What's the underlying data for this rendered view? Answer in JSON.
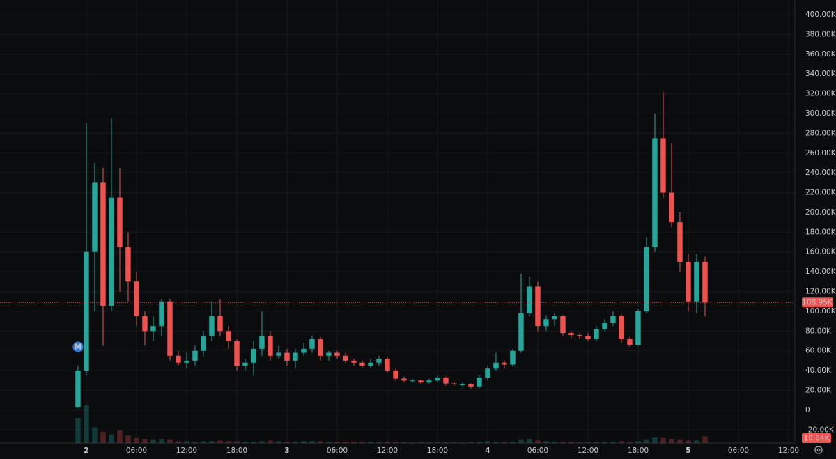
{
  "chart_data": {
    "type": "candlestick",
    "up_color": "#26a69a",
    "down_color": "#ef5350",
    "grid": true,
    "x": [
      -1,
      0,
      1,
      2,
      3,
      4,
      5,
      6,
      7,
      8,
      9,
      10,
      11,
      12,
      13,
      14,
      15,
      16,
      17,
      18,
      19,
      20,
      21,
      22,
      23,
      24,
      25,
      26,
      27,
      28,
      29,
      30,
      31,
      32,
      33,
      34,
      35,
      36,
      37,
      38,
      39,
      40,
      41,
      42,
      43,
      44,
      45,
      46,
      47,
      48,
      49,
      50,
      51,
      52,
      53,
      54,
      55,
      56,
      57,
      58,
      59,
      60,
      61,
      62,
      63,
      64,
      65,
      66,
      67,
      68,
      69,
      70,
      71,
      72,
      73,
      74
    ],
    "open": [
      3,
      40,
      160,
      230,
      105,
      215,
      165,
      130,
      95,
      80,
      85,
      110,
      55,
      48,
      50,
      60,
      75,
      95,
      80,
      70,
      45,
      48,
      62,
      75,
      55,
      58,
      50,
      58,
      62,
      72,
      55,
      58,
      55,
      50,
      48,
      45,
      48,
      52,
      40,
      32,
      30,
      30,
      28,
      30,
      33,
      27,
      26,
      26,
      24,
      33,
      42,
      48,
      46,
      60,
      98,
      125,
      85,
      92,
      95,
      78,
      76,
      75,
      72,
      82,
      88,
      95,
      72,
      66,
      100,
      165,
      275,
      220,
      190,
      150,
      110,
      150
    ],
    "high": [
      45,
      290,
      250,
      245,
      295,
      245,
      180,
      140,
      100,
      95,
      112,
      112,
      60,
      58,
      65,
      80,
      110,
      112,
      85,
      72,
      52,
      70,
      100,
      80,
      65,
      62,
      62,
      68,
      75,
      74,
      60,
      60,
      58,
      52,
      50,
      52,
      55,
      54,
      42,
      34,
      32,
      31,
      32,
      35,
      34,
      28,
      28,
      27,
      35,
      45,
      58,
      50,
      62,
      138,
      135,
      130,
      96,
      98,
      96,
      80,
      78,
      78,
      85,
      92,
      100,
      97,
      74,
      102,
      175,
      300,
      322,
      270,
      200,
      158,
      158,
      155
    ],
    "low": [
      2,
      35,
      100,
      65,
      100,
      120,
      110,
      85,
      65,
      70,
      75,
      50,
      45,
      42,
      45,
      55,
      70,
      75,
      62,
      40,
      40,
      35,
      55,
      50,
      52,
      45,
      42,
      55,
      58,
      50,
      50,
      52,
      48,
      45,
      43,
      42,
      45,
      38,
      30,
      28,
      28,
      26,
      27,
      28,
      25,
      25,
      24,
      22,
      22,
      30,
      40,
      42,
      44,
      58,
      95,
      80,
      80,
      85,
      75,
      73,
      72,
      70,
      70,
      80,
      85,
      68,
      64,
      65,
      98,
      160,
      215,
      185,
      140,
      100,
      98,
      95
    ],
    "close": [
      40,
      160,
      230,
      105,
      215,
      165,
      130,
      95,
      80,
      85,
      110,
      55,
      48,
      50,
      60,
      75,
      95,
      80,
      70,
      45,
      48,
      62,
      75,
      55,
      58,
      50,
      58,
      62,
      72,
      55,
      58,
      55,
      50,
      48,
      45,
      48,
      52,
      40,
      32,
      30,
      30,
      28,
      30,
      33,
      27,
      26,
      26,
      24,
      33,
      42,
      48,
      46,
      60,
      98,
      125,
      85,
      92,
      95,
      78,
      76,
      75,
      72,
      82,
      88,
      95,
      72,
      66,
      100,
      165,
      275,
      220,
      190,
      150,
      110,
      150,
      109
    ],
    "volume": [
      40,
      60,
      25,
      18,
      14,
      20,
      12,
      8,
      6,
      5,
      6,
      5,
      3,
      3,
      2,
      3,
      3,
      4,
      3,
      3,
      2,
      2,
      3,
      4,
      3,
      2,
      2,
      3,
      3,
      3,
      2,
      2,
      2,
      2,
      2,
      2,
      2,
      2,
      2,
      1,
      1,
      1,
      1,
      1,
      1,
      1,
      1,
      1,
      2,
      3,
      2,
      2,
      2,
      5,
      6,
      4,
      3,
      2,
      2,
      2,
      1,
      1,
      2,
      2,
      2,
      3,
      2,
      3,
      5,
      9,
      8,
      6,
      5,
      4,
      4,
      10.64
    ],
    "volume_label": {
      "value": 10.64,
      "label": "10.64K"
    },
    "last_price": {
      "value": 108.95,
      "label": "108.95K"
    },
    "marker": {
      "x": -1,
      "y": 64,
      "label": "M"
    },
    "xlim": [
      -10.33,
      84.67
    ],
    "xticks": [
      {
        "value": 0,
        "label": "2"
      },
      {
        "value": 6,
        "label": "06:00"
      },
      {
        "value": 12,
        "label": "12:00"
      },
      {
        "value": 18,
        "label": "18:00"
      },
      {
        "value": 24,
        "label": "3"
      },
      {
        "value": 30,
        "label": "06:00"
      },
      {
        "value": 36,
        "label": "12:00"
      },
      {
        "value": 42,
        "label": "18:00"
      },
      {
        "value": 48,
        "label": "4"
      },
      {
        "value": 54,
        "label": "06:00"
      },
      {
        "value": 60,
        "label": "12:00"
      },
      {
        "value": 66,
        "label": "18:00"
      },
      {
        "value": 72,
        "label": "5"
      },
      {
        "value": 78,
        "label": "06:00"
      },
      {
        "value": 84,
        "label": "12:00"
      }
    ],
    "ylim": [
      -33.2,
      414.8
    ],
    "yticks": [
      {
        "value": -20,
        "label": "-20.00K"
      },
      0,
      {
        "value": 20,
        "label": "20.00K"
      },
      {
        "value": 40,
        "label": "40.00K"
      },
      {
        "value": 60,
        "label": "60.00K"
      },
      {
        "value": 80,
        "label": "80.00K"
      },
      {
        "value": 100,
        "label": "100.00K"
      },
      {
        "value": 120,
        "label": "120.00K"
      },
      {
        "value": 140,
        "label": "140.00K"
      },
      {
        "value": 160,
        "label": "160.00K"
      },
      {
        "value": 180,
        "label": "180.00K"
      },
      {
        "value": 200,
        "label": "200.00K"
      },
      {
        "value": 220,
        "label": "220.00K"
      },
      {
        "value": 240,
        "label": "240.00K"
      },
      {
        "value": 260,
        "label": "260.00K"
      },
      {
        "value": 280,
        "label": "280.00K"
      },
      {
        "value": 300,
        "label": "300.00K"
      },
      {
        "value": 320,
        "label": "320.00K"
      },
      {
        "value": 340,
        "label": "340.00K"
      },
      {
        "value": 360,
        "label": "360.00K"
      },
      {
        "value": 380,
        "label": "380.00K"
      },
      {
        "value": 400,
        "label": "400.00K"
      }
    ]
  }
}
